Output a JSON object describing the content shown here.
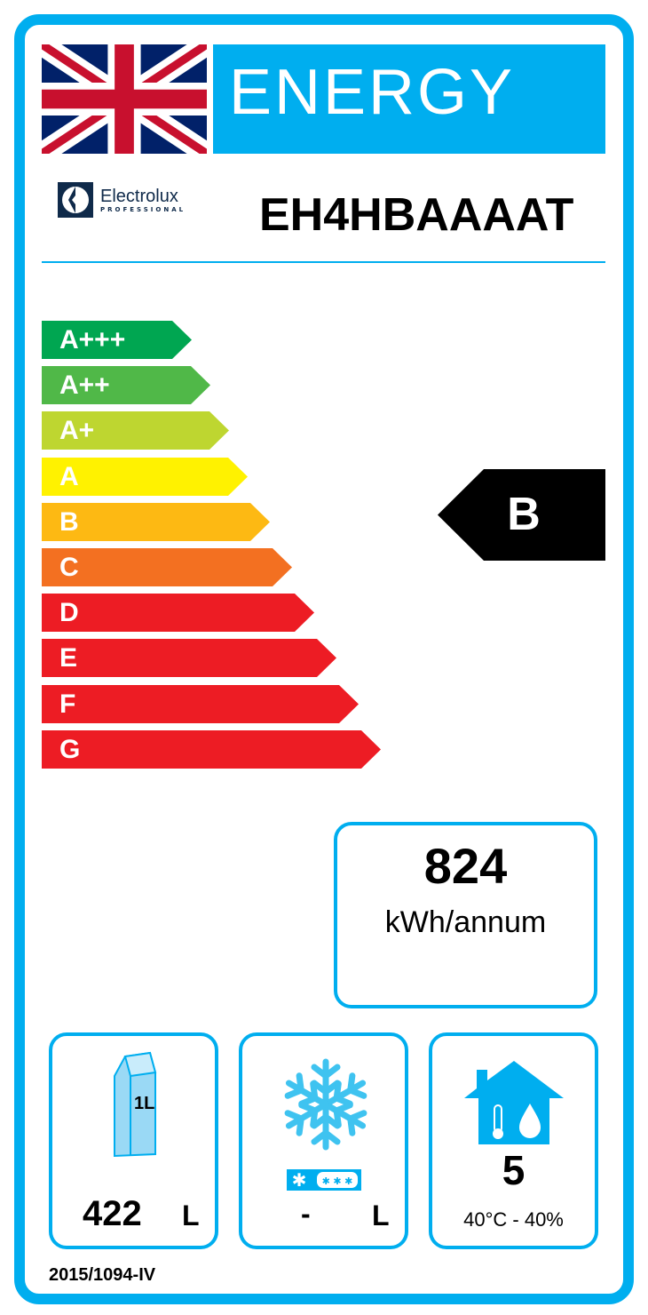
{
  "header": {
    "title": "ENERGY",
    "brand": "Electrolux",
    "brand_sub": "PROFESSIONAL",
    "model": "EH4HBAAAAT",
    "flag": "uk-flag-icon"
  },
  "scale": [
    {
      "label": "A+++",
      "color": "#00a651"
    },
    {
      "label": "A++",
      "color": "#50b848"
    },
    {
      "label": "A+",
      "color": "#bed630"
    },
    {
      "label": "A",
      "color": "#fff200"
    },
    {
      "label": "B",
      "color": "#fdb913"
    },
    {
      "label": "C",
      "color": "#f37021"
    },
    {
      "label": "D",
      "color": "#ed1c24"
    },
    {
      "label": "E",
      "color": "#ed1c24"
    },
    {
      "label": "F",
      "color": "#ed1c24"
    },
    {
      "label": "G",
      "color": "#ed1c24"
    }
  ],
  "rating": {
    "class": "B",
    "color": "#000000"
  },
  "consumption": {
    "value": "824",
    "unit": "kWh/annum"
  },
  "fresh": {
    "value": "422",
    "unit": "L",
    "icon_text": "1L"
  },
  "frozen": {
    "value": "-",
    "unit": "L"
  },
  "climate": {
    "class": "5",
    "conditions": "40°C - 40%"
  },
  "footer": {
    "regulation": "2015/1094-IV"
  },
  "accent": "#00aeef"
}
